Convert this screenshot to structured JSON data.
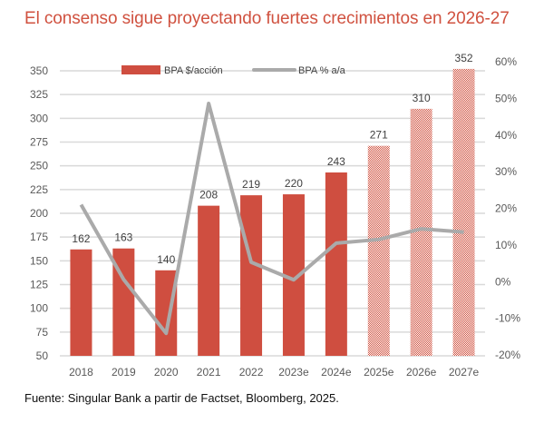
{
  "title": "El consenso sigue proyectando fuertes crecimientos en 2026-27",
  "source": "Fuente: Singular Bank a partir de Factset, Bloomberg, 2025.",
  "colors": {
    "title": "#d0513f",
    "bar": "#cf4e40",
    "bar_estimate": "#e8a09a",
    "line": "#aaaaaa",
    "grid": "#d9d9d9"
  },
  "chart_data": {
    "type": "bar",
    "title": "El consenso sigue proyectando fuertes crecimientos en 2026-27",
    "categories": [
      "2018",
      "2019",
      "2020",
      "2021",
      "2022",
      "2023e",
      "2024e",
      "2025e",
      "2026e",
      "2027e"
    ],
    "series": [
      {
        "name": "BPA $/acción",
        "type": "bar",
        "axis": "left",
        "values": [
          162,
          163,
          140,
          208,
          219,
          220,
          243,
          271,
          310,
          352
        ],
        "estimate_from_index": 7,
        "data_labels": [
          "162",
          "163",
          "140",
          "208",
          "219",
          "220",
          "243",
          "271",
          "310",
          "352"
        ]
      },
      {
        "name": "BPA % a/a",
        "type": "line",
        "axis": "right",
        "values": [
          21,
          0.6,
          -14.1,
          48.6,
          5.3,
          0.5,
          10.5,
          11.5,
          14.4,
          13.5
        ]
      }
    ],
    "left_axis": {
      "min": 50,
      "max": 350,
      "step": 25,
      "ticks": [
        "350",
        "325",
        "300",
        "275",
        "250",
        "225",
        "200",
        "175",
        "150",
        "125",
        "100",
        "75",
        "50"
      ]
    },
    "right_axis": {
      "min": -20,
      "max": 60,
      "step": 10,
      "ticks": [
        "60%",
        "50%",
        "40%",
        "30%",
        "20%",
        "10%",
        "0%",
        "-10%",
        "-20%"
      ]
    },
    "xlabel": "",
    "ylabel": "",
    "grid": true,
    "legend": {
      "position": "top",
      "entries": [
        "BPA $/acción",
        "BPA % a/a"
      ]
    }
  }
}
